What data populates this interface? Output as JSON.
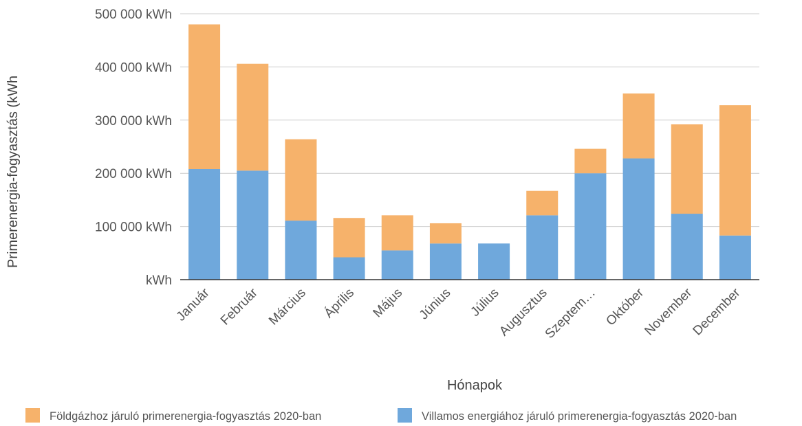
{
  "chart_data": {
    "type": "bar",
    "stacked": true,
    "categories": [
      "Január",
      "Február",
      "Március",
      "Április",
      "Május",
      "Június",
      "Július",
      "Augusztus",
      "Szeptem…",
      "Október",
      "November",
      "December"
    ],
    "series": [
      {
        "name": "Villamos energiához járuló primerenergia-fogyasztás 2020-ban",
        "color": "#6fa8dc",
        "values": [
          208000,
          205000,
          111000,
          42000,
          55000,
          68000,
          68000,
          121000,
          200000,
          228000,
          124000,
          83000
        ]
      },
      {
        "name": "Földgázhoz járuló primerenergia-fogyasztás 2020-ban",
        "color": "#f6b26b",
        "values": [
          272000,
          201000,
          153000,
          74000,
          66000,
          38000,
          0,
          46000,
          46000,
          122000,
          168000,
          245000
        ]
      }
    ],
    "xlabel": "Hónapok",
    "ylabel": "Primerenergia-fogyasztás (kWh",
    "ylim": [
      0,
      500000
    ],
    "yticks": [
      0,
      100000,
      200000,
      300000,
      400000,
      500000
    ],
    "ytick_labels": [
      "kWh",
      "100 000  kWh",
      "200 000  kWh",
      "300 000  kWh",
      "400 000  kWh",
      "500 000  kWh"
    ],
    "grid": true,
    "legend_position": "bottom",
    "legend_order": [
      "Földgázhoz járuló primerenergia-fogyasztás 2020-ban",
      "Villamos energiához járuló primerenergia-fogyasztás 2020-ban"
    ]
  }
}
